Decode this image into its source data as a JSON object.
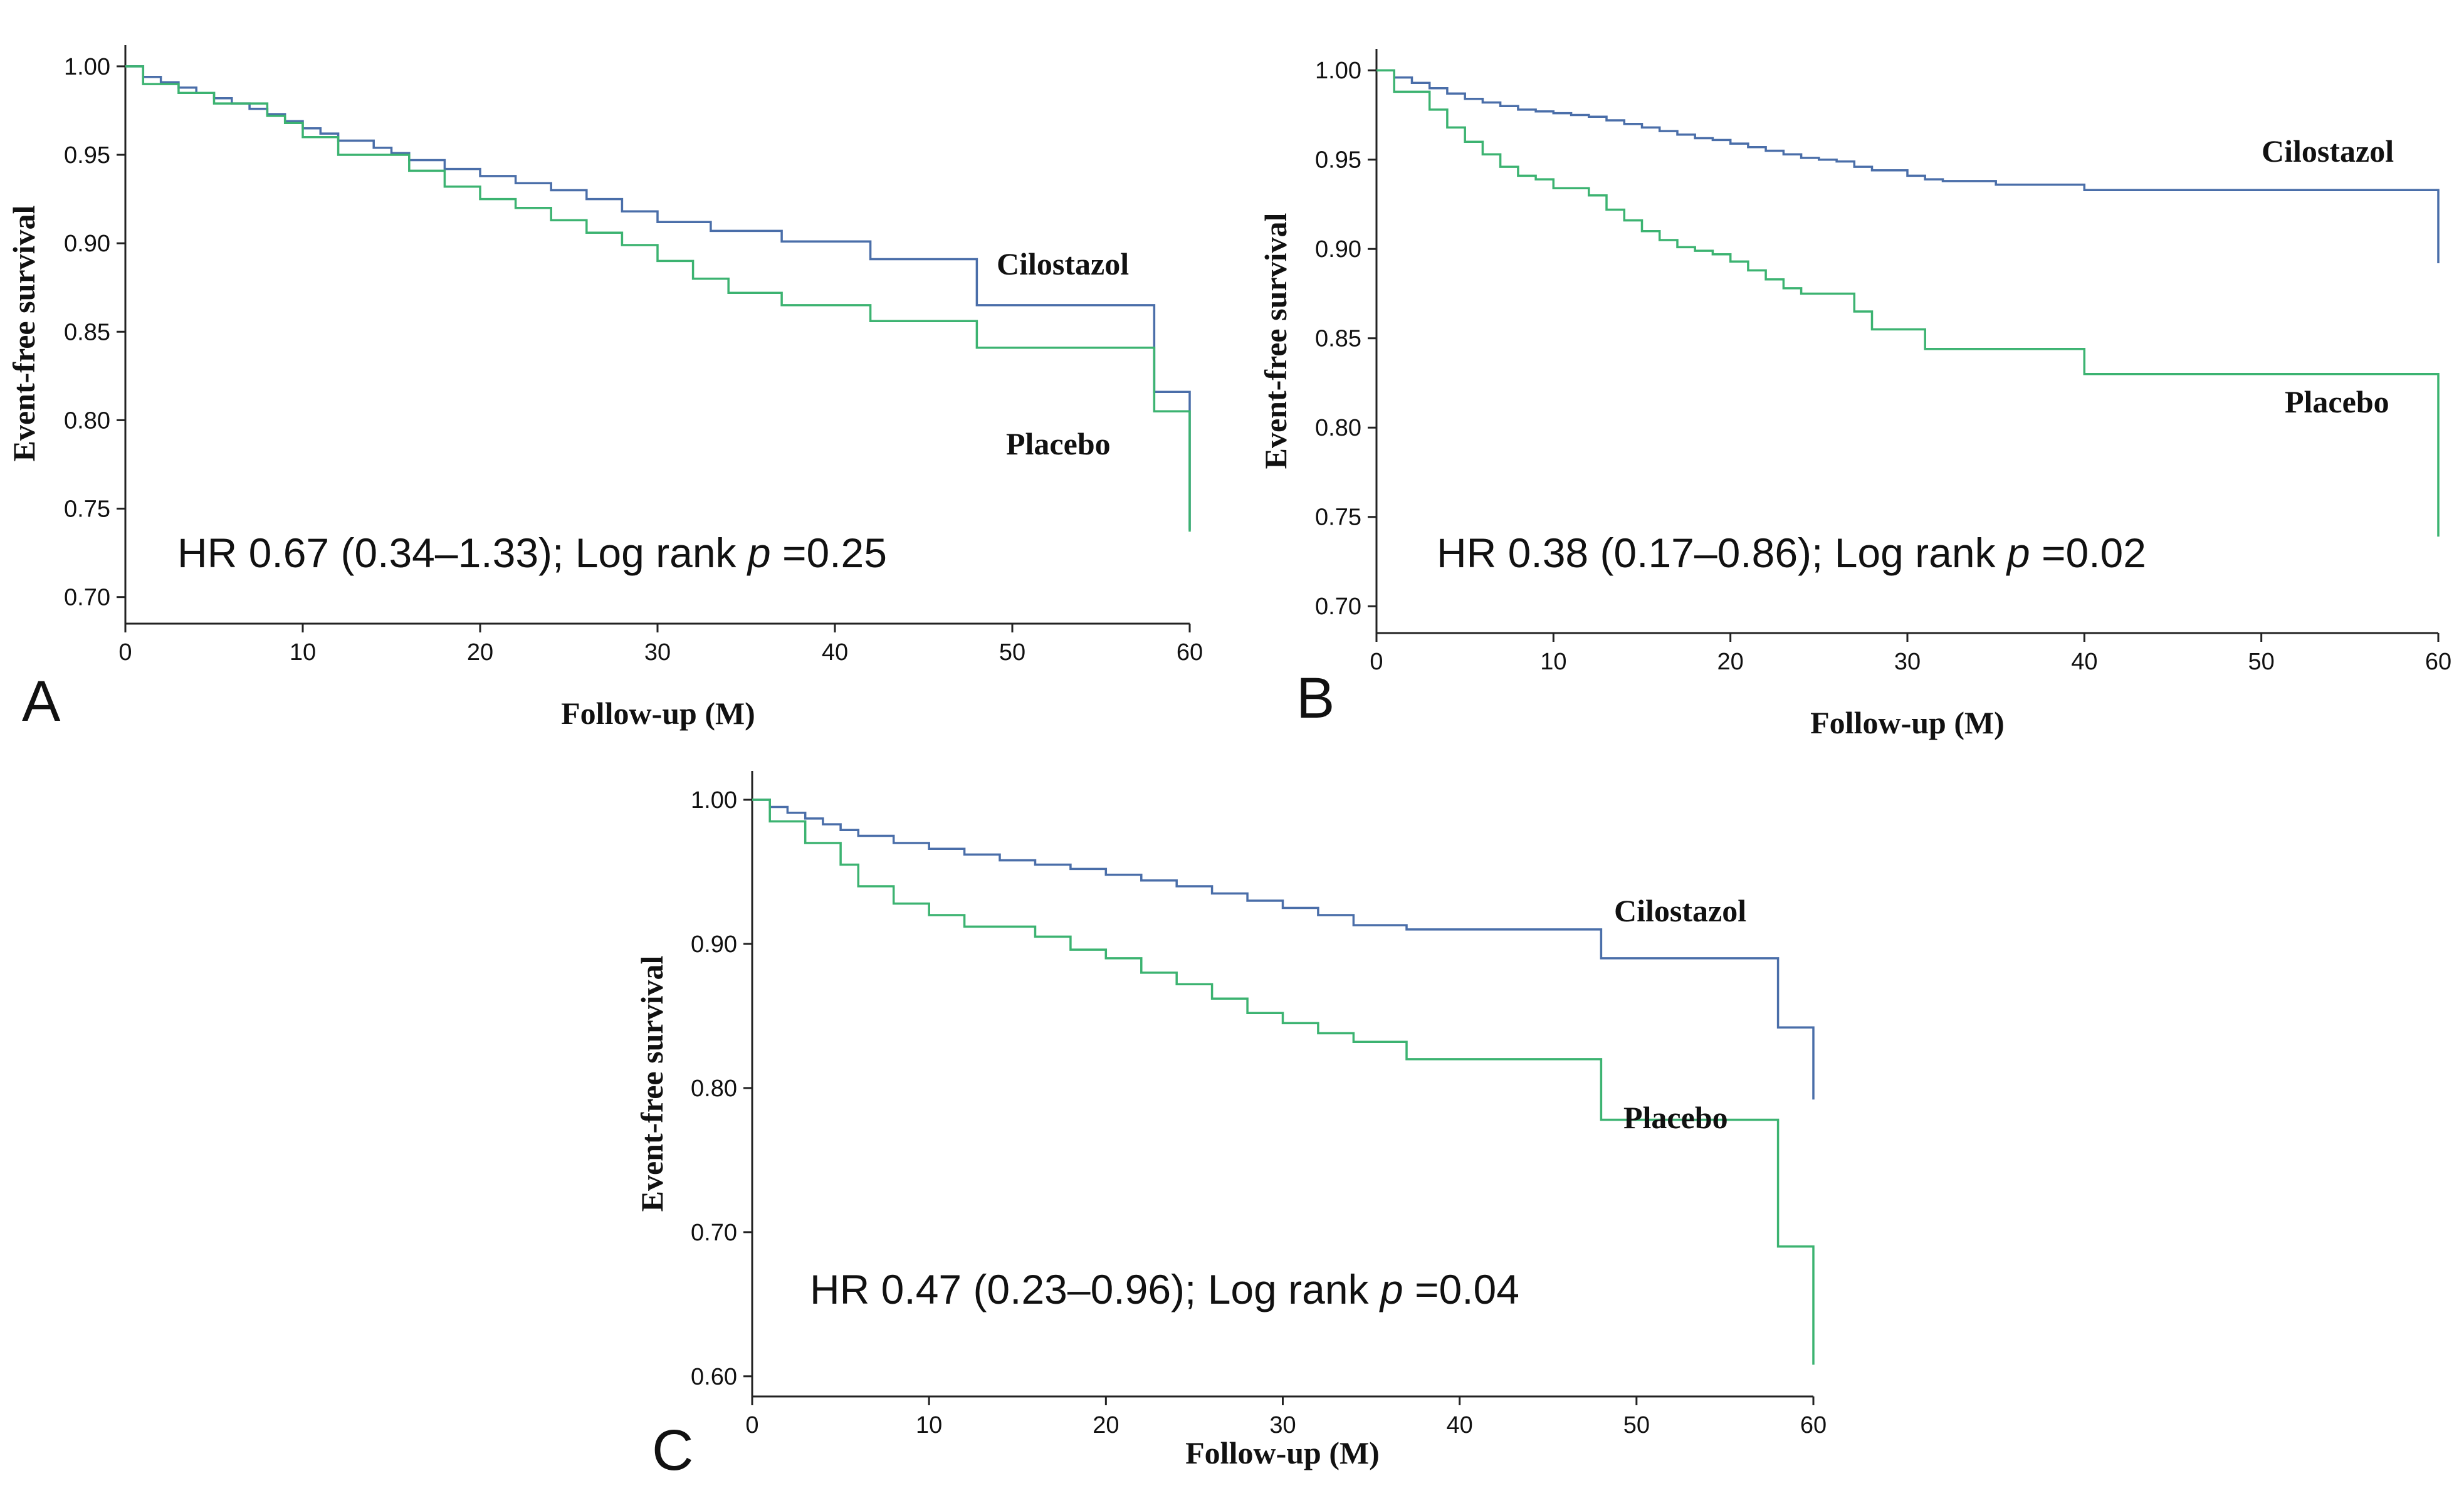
{
  "chart_data": [
    {
      "panel": "A",
      "type": "line",
      "title": "",
      "xlabel": "Follow-up (M)",
      "ylabel": "Event-free survival",
      "xlim": [
        0,
        60
      ],
      "ylim": [
        0.685,
        1.012
      ],
      "xticks": [
        0,
        10,
        20,
        30,
        40,
        50,
        60
      ],
      "yticks": [
        0.7,
        0.75,
        0.8,
        0.85,
        0.9,
        0.95,
        1.0
      ],
      "ytick_labels": [
        "0.70",
        "0.75",
        "0.80",
        "0.85",
        "0.90",
        "0.95",
        "1.00"
      ],
      "annotation": {
        "pre": "HR 0.67 (0.34–1.33); Log rank ",
        "p": "p",
        "post": " =0.25"
      },
      "series": [
        {
          "name": "Cilostazol",
          "color": "#4a6ea9",
          "label_pos": "right",
          "x": [
            0,
            1,
            2,
            3,
            4,
            5,
            6,
            7,
            8,
            9,
            10,
            11,
            12,
            14,
            15,
            16,
            18,
            20,
            22,
            24,
            26,
            28,
            30,
            33,
            37,
            42,
            48,
            58,
            60
          ],
          "y": [
            1.0,
            0.994,
            0.991,
            0.988,
            0.985,
            0.982,
            0.979,
            0.976,
            0.973,
            0.969,
            0.965,
            0.962,
            0.958,
            0.954,
            0.951,
            0.947,
            0.942,
            0.938,
            0.934,
            0.93,
            0.925,
            0.918,
            0.912,
            0.907,
            0.901,
            0.891,
            0.865,
            0.816,
            0.738
          ]
        },
        {
          "name": "Placebo",
          "color": "#3cb371",
          "label_pos": "below",
          "x": [
            0,
            1,
            3,
            5,
            8,
            9,
            10,
            12,
            16,
            18,
            20,
            22,
            24,
            26,
            28,
            30,
            32,
            34,
            37,
            42,
            48,
            58,
            60
          ],
          "y": [
            1.0,
            0.99,
            0.985,
            0.979,
            0.972,
            0.968,
            0.96,
            0.95,
            0.941,
            0.932,
            0.925,
            0.92,
            0.913,
            0.906,
            0.899,
            0.89,
            0.88,
            0.872,
            0.865,
            0.856,
            0.841,
            0.805,
            0.737
          ]
        }
      ]
    },
    {
      "panel": "B",
      "type": "line",
      "title": "",
      "xlabel": "Follow-up (M)",
      "ylabel": "Event-free survival",
      "xlim": [
        0,
        60
      ],
      "ylim": [
        0.685,
        1.012
      ],
      "xticks": [
        0,
        10,
        20,
        30,
        40,
        50,
        60
      ],
      "yticks": [
        0.7,
        0.75,
        0.8,
        0.85,
        0.9,
        0.95,
        1.0
      ],
      "ytick_labels": [
        "0.70",
        "0.75",
        "0.80",
        "0.85",
        "0.90",
        "0.95",
        "1.00"
      ],
      "annotation": {
        "pre": "HR 0.38 (0.17–0.86); Log rank ",
        "p": "p",
        "post": " =0.02"
      },
      "series": [
        {
          "name": "Cilostazol",
          "color": "#4a6ea9",
          "label_pos": "right",
          "x": [
            0,
            1,
            2,
            3,
            4,
            5,
            6,
            7,
            8,
            9,
            10,
            11,
            12,
            13,
            14,
            15,
            16,
            17,
            18,
            19,
            20,
            21,
            22,
            23,
            24,
            25,
            26,
            27,
            28,
            30,
            31,
            32,
            35,
            40,
            60
          ],
          "y": [
            1.0,
            0.996,
            0.993,
            0.99,
            0.987,
            0.984,
            0.982,
            0.98,
            0.978,
            0.977,
            0.976,
            0.975,
            0.974,
            0.972,
            0.97,
            0.968,
            0.966,
            0.964,
            0.962,
            0.961,
            0.959,
            0.957,
            0.955,
            0.953,
            0.951,
            0.95,
            0.949,
            0.946,
            0.944,
            0.941,
            0.939,
            0.938,
            0.936,
            0.933,
            0.892
          ]
        },
        {
          "name": "Placebo",
          "color": "#3cb371",
          "label_pos": "below",
          "x": [
            0,
            1,
            3,
            4,
            5,
            6,
            7,
            8,
            9,
            10,
            12,
            13,
            14,
            15,
            16,
            17,
            18,
            19,
            20,
            21,
            22,
            23,
            24,
            25,
            27,
            28,
            31,
            40,
            60
          ],
          "y": [
            1.0,
            0.988,
            0.978,
            0.968,
            0.96,
            0.953,
            0.946,
            0.941,
            0.939,
            0.934,
            0.93,
            0.922,
            0.916,
            0.91,
            0.905,
            0.901,
            0.899,
            0.897,
            0.893,
            0.888,
            0.883,
            0.878,
            0.875,
            0.875,
            0.865,
            0.855,
            0.844,
            0.83,
            0.739
          ]
        }
      ]
    },
    {
      "panel": "C",
      "type": "line",
      "title": "",
      "xlabel": "Follow-up (M)",
      "ylabel": "Event-free survival",
      "xlim": [
        0,
        60
      ],
      "ylim": [
        0.586,
        1.02
      ],
      "xticks": [
        0,
        10,
        20,
        30,
        40,
        50,
        60
      ],
      "yticks": [
        0.6,
        0.7,
        0.8,
        0.9,
        1.0
      ],
      "ytick_labels": [
        "0.60",
        "0.70",
        "0.80",
        "0.90",
        "1.00"
      ],
      "annotation": {
        "pre": "HR 0.47 (0.23–0.96); Log rank ",
        "p": "p",
        "post": " =0.04"
      },
      "series": [
        {
          "name": "Cilostazol",
          "color": "#4a6ea9",
          "label_pos": "right",
          "x": [
            0,
            1,
            2,
            3,
            4,
            5,
            6,
            8,
            10,
            12,
            14,
            16,
            18,
            20,
            22,
            24,
            26,
            28,
            30,
            32,
            34,
            37,
            48,
            58,
            60
          ],
          "y": [
            1.0,
            0.995,
            0.991,
            0.987,
            0.983,
            0.979,
            0.975,
            0.97,
            0.966,
            0.962,
            0.958,
            0.955,
            0.952,
            0.948,
            0.944,
            0.94,
            0.935,
            0.93,
            0.925,
            0.92,
            0.913,
            0.91,
            0.89,
            0.842,
            0.792
          ]
        },
        {
          "name": "Placebo",
          "color": "#3cb371",
          "label_pos": "below",
          "x": [
            0,
            1,
            3,
            5,
            6,
            8,
            10,
            12,
            16,
            18,
            20,
            22,
            24,
            26,
            28,
            30,
            32,
            34,
            37,
            48,
            58,
            60
          ],
          "y": [
            1.0,
            0.985,
            0.97,
            0.955,
            0.94,
            0.928,
            0.92,
            0.912,
            0.905,
            0.896,
            0.89,
            0.88,
            0.872,
            0.862,
            0.852,
            0.845,
            0.838,
            0.832,
            0.82,
            0.778,
            0.69,
            0.608
          ]
        }
      ]
    }
  ]
}
